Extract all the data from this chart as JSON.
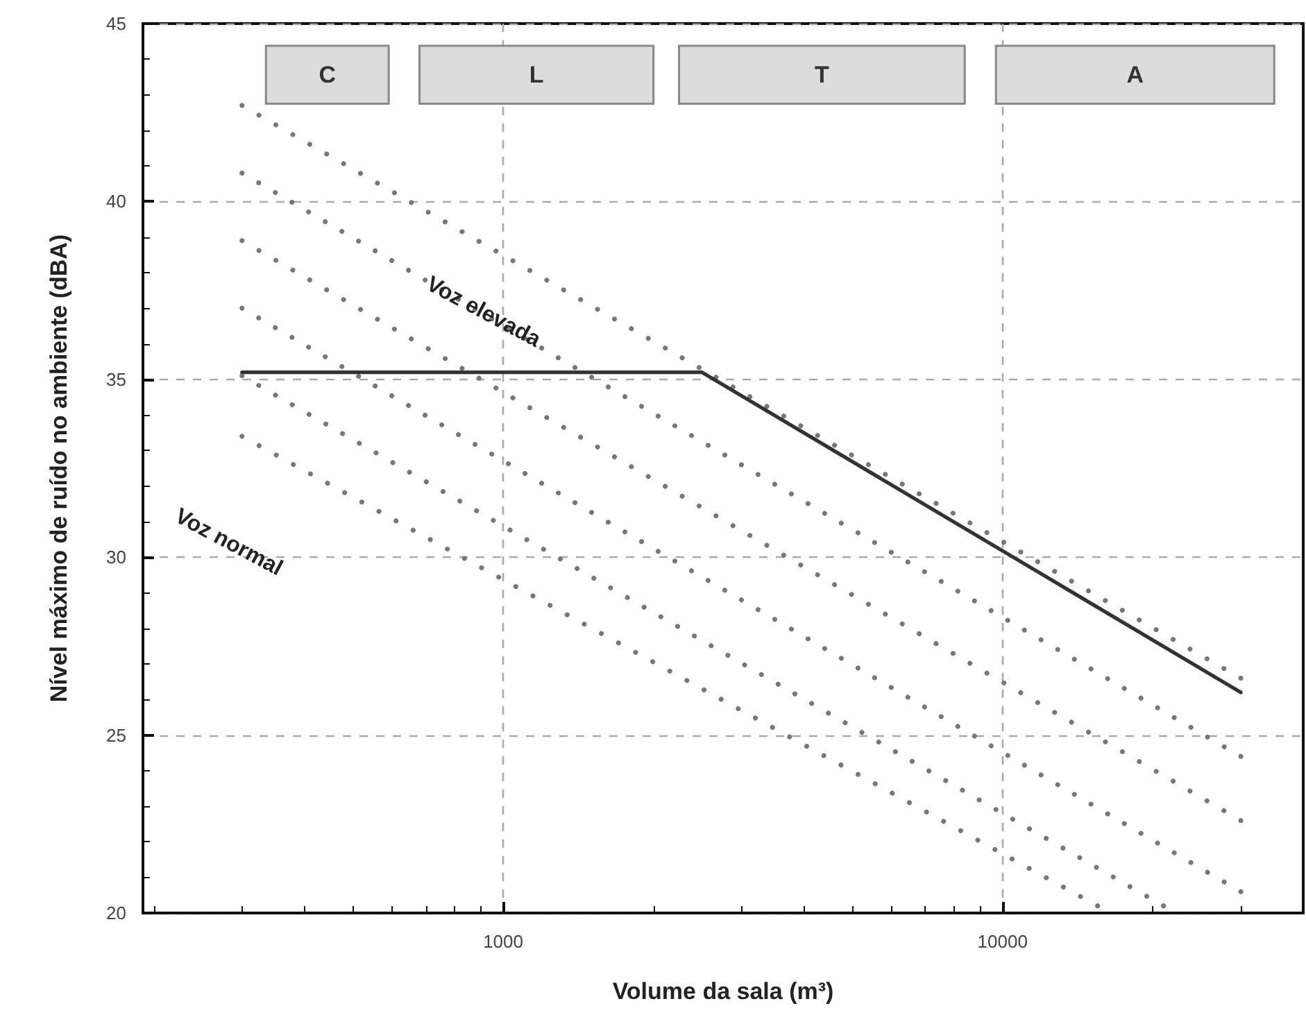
{
  "chart_data": {
    "type": "line",
    "xlabel": "Volume da sala (m³)",
    "ylabel": "Nível máximo de ruído no ambiente (dBA)",
    "log": "x",
    "xlim": [
      190,
      40000
    ],
    "xticks": [
      1000,
      10000
    ],
    "ylim": [
      20,
      45
    ],
    "yticks": [
      20,
      25,
      30,
      35,
      40,
      45
    ],
    "grid": true,
    "marker": "none",
    "series": [
      {
        "color": "#333333",
        "x": [
          300,
          2500,
          30000
        ],
        "values": [
          35.2,
          35.2,
          26.2
        ],
        "line_style": "solid"
      },
      {
        "color": "#777777",
        "x": [
          300,
          30000
        ],
        "values": [
          42.7,
          26.6
        ],
        "line_style": "dotted"
      },
      {
        "color": "#777777",
        "x": [
          300,
          30000
        ],
        "values": [
          40.8,
          24.4
        ],
        "line_style": "dotted"
      },
      {
        "color": "#777777",
        "x": [
          300,
          30000
        ],
        "values": [
          38.9,
          22.6
        ],
        "line_style": "dotted"
      },
      {
        "color": "#777777",
        "x": [
          300,
          30000
        ],
        "values": [
          37.0,
          20.6
        ],
        "line_style": "dotted"
      },
      {
        "color": "#777777",
        "x": [
          300,
          21000
        ],
        "values": [
          35.1,
          20.2
        ],
        "line_style": "dotted"
      },
      {
        "color": "#777777",
        "x": [
          300,
          15500
        ],
        "values": [
          33.4,
          20.2
        ],
        "line_style": "dotted"
      }
    ],
    "bands": [
      {
        "axis": "x",
        "from": 335,
        "to": 590,
        "label": "C",
        "color": "#dcdcdc"
      },
      {
        "axis": "x",
        "from": 680,
        "to": 2000,
        "label": "L",
        "color": "#dcdcdc"
      },
      {
        "axis": "x",
        "from": 2250,
        "to": 8400,
        "label": "T",
        "color": "#dcdcdc"
      },
      {
        "axis": "x",
        "from": 9700,
        "to": 35000,
        "label": "A",
        "color": "#dcdcdc"
      }
    ],
    "annotations": [
      "Voz elevada",
      "Voz normal"
    ]
  }
}
